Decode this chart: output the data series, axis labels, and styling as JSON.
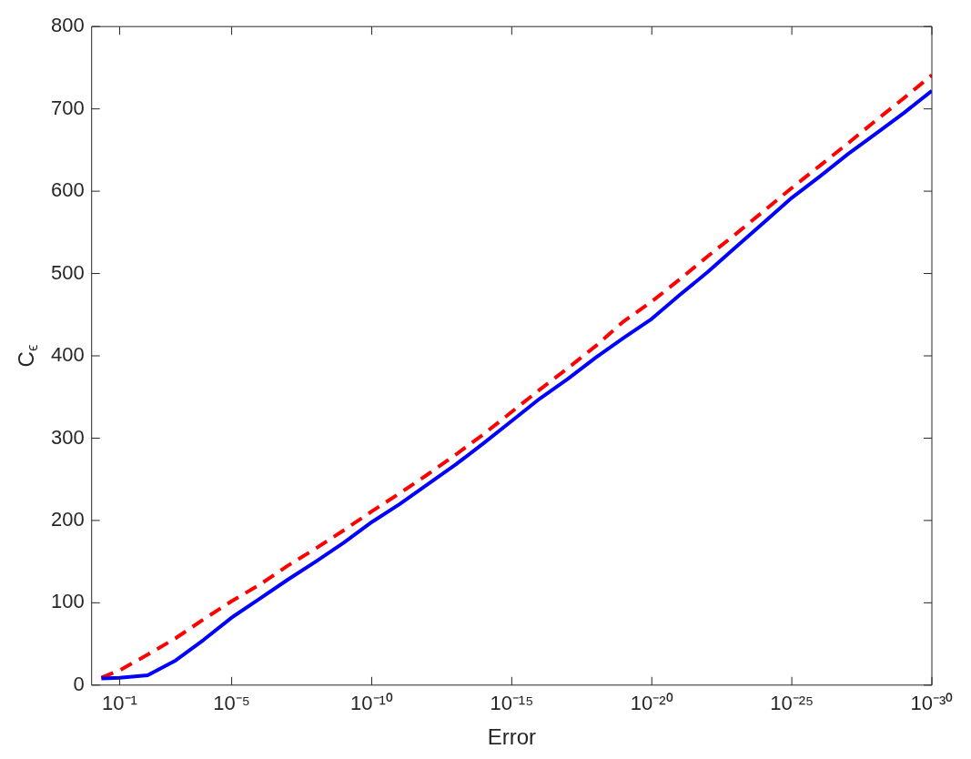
{
  "chart_data": {
    "type": "line",
    "xlabel": "Error",
    "ylabel": "C$_{ϵ}$",
    "log": "x",
    "grid": false,
    "legend": false,
    "xlim": [
      1,
      1e-30
    ],
    "xticks": [
      {
        "value": 0.1,
        "label": "10⁻¹"
      },
      {
        "value": 1e-05,
        "label": "10⁻⁵"
      },
      {
        "value": 1e-10,
        "label": "10⁻¹⁰"
      },
      {
        "value": 1e-15,
        "label": "10⁻¹⁵"
      },
      {
        "value": 1e-20,
        "label": "10⁻²⁰"
      },
      {
        "value": 1e-25,
        "label": "10⁻²⁵"
      },
      {
        "value": 1e-30,
        "label": "10⁻³⁰"
      }
    ],
    "ylim": [
      0,
      800
    ],
    "yticks": [
      0,
      100,
      200,
      300,
      400,
      500,
      600,
      700,
      800
    ],
    "x": [
      0.45,
      0.1,
      0.01,
      0.001,
      0.0001,
      1e-05,
      1e-06,
      1e-07,
      1e-08,
      1e-09,
      1e-10,
      1e-11,
      1e-12,
      1e-13,
      1e-14,
      1e-15,
      1e-16,
      1e-17,
      1e-18,
      1e-19,
      1e-20,
      1e-21,
      1e-22,
      1e-23,
      1e-24,
      1e-25,
      1e-26,
      1e-27,
      1e-28,
      1e-29,
      1e-30
    ],
    "series": [
      {
        "color": "#0000ff",
        "line_style": "solid",
        "values": [
          8,
          9,
          12,
          30,
          55,
          82,
          105,
          128,
          150,
          173,
          198,
          220,
          244,
          268,
          294,
          321,
          348,
          372,
          398,
          422,
          445,
          474,
          502,
          532,
          562,
          592,
          618,
          645,
          670,
          695,
          722
        ]
      },
      {
        "color": "#ff0000",
        "line_style": "dashed",
        "values": [
          9,
          18,
          37,
          57,
          80,
          102,
          122,
          145,
          166,
          188,
          211,
          233,
          256,
          280,
          305,
          332,
          359,
          385,
          412,
          442,
          466,
          493,
          521,
          548,
          576,
          604,
          631,
          658,
          686,
          713,
          741
        ]
      }
    ]
  }
}
